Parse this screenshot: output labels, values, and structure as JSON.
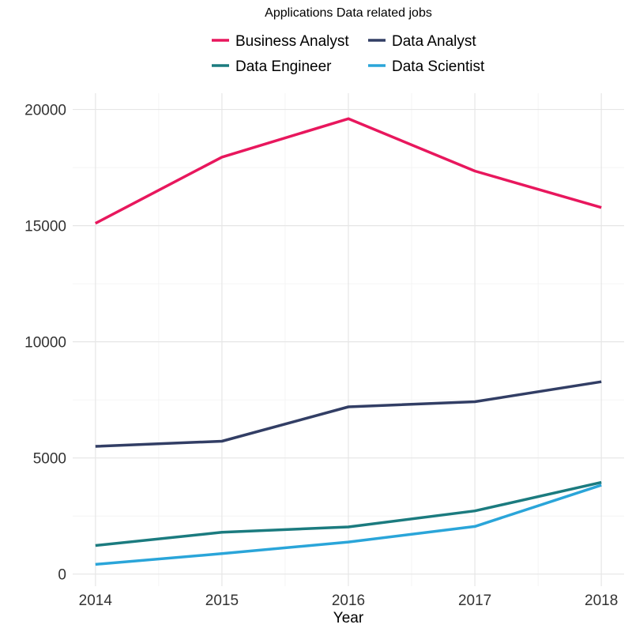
{
  "chart_data": {
    "type": "line",
    "title": "",
    "legend_title": "Applications Data related jobs",
    "legend_position": "top",
    "xlabel": "Year",
    "ylabel": "",
    "x": [
      2014,
      2015,
      2016,
      2017,
      2018
    ],
    "x_ticks": [
      "2014",
      "2015",
      "2016",
      "2017",
      "2018"
    ],
    "ylim": [
      0,
      20500
    ],
    "y_ticks": [
      0,
      5000,
      10000,
      15000,
      20000
    ],
    "y_tick_labels": [
      "0",
      "5000",
      "10000",
      "15000",
      "20000"
    ],
    "grid": true,
    "series": [
      {
        "name": "Business Analyst",
        "color": "#E8175D",
        "values": [
          15100,
          17950,
          19600,
          17350,
          15780
        ]
      },
      {
        "name": "Data Analyst",
        "color": "#323E65",
        "values": [
          5500,
          5720,
          7200,
          7420,
          8280
        ]
      },
      {
        "name": "Data Engineer",
        "color": "#1B7B7F",
        "values": [
          1230,
          1800,
          2030,
          2720,
          3950
        ]
      },
      {
        "name": "Data Scientist",
        "color": "#2AA5D9",
        "values": [
          420,
          880,
          1380,
          2050,
          3830
        ]
      }
    ]
  }
}
